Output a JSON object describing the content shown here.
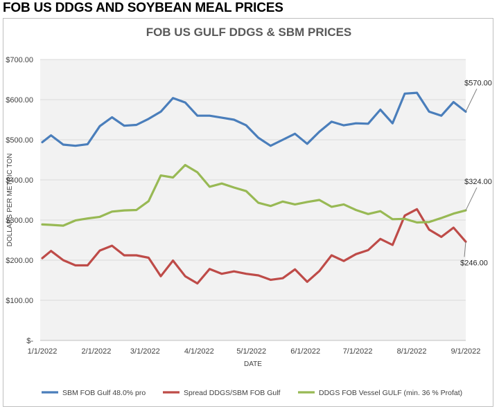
{
  "page": {
    "heading": "FOB US DDGS AND SOYBEAN MEAL PRICES"
  },
  "chart_data": {
    "type": "line",
    "title": "FOB US GULF DDGS & SBM PRICES",
    "xlabel": "DATE",
    "ylabel": "DOLLARS PER METRIC TON",
    "ylim": [
      0,
      700
    ],
    "yticks": [
      0,
      100,
      200,
      300,
      400,
      500,
      600,
      700
    ],
    "ytick_labels": [
      "$-",
      "$100.00",
      "$200.00",
      "$300.00",
      "$400.00",
      "$500.00",
      "$600.00",
      "$700.00"
    ],
    "xticks": [
      0,
      31,
      59,
      90,
      120,
      151,
      181,
      212,
      243
    ],
    "xtick_labels": [
      "1/1/2022",
      "2/1/2022",
      "3/1/2022",
      "4/1/2022",
      "5/1/2022",
      "6/1/2022",
      "7/1/2022",
      "8/1/2022",
      "9/1/2022"
    ],
    "x_unit": "days since 1/1/2022",
    "x": [
      0,
      5,
      12,
      19,
      26,
      33,
      40,
      47,
      54,
      61,
      68,
      75,
      82,
      89,
      96,
      103,
      110,
      117,
      124,
      131,
      138,
      145,
      152,
      159,
      166,
      173,
      180,
      187,
      194,
      201,
      208,
      215,
      222,
      229,
      236,
      243
    ],
    "series": [
      {
        "name": "SBM FOB Gulf 48.0% pro",
        "color": "#4a7ebb",
        "values": [
          494,
          511,
          488,
          485,
          489,
          534,
          556,
          535,
          537,
          552,
          570,
          604,
          593,
          560,
          560,
          555,
          550,
          536,
          505,
          485,
          500,
          515,
          490,
          520,
          545,
          536,
          541,
          540,
          575,
          541,
          615,
          617,
          570,
          560,
          594,
          570
        ]
      },
      {
        "name": "Spread DDGS/SBM FOB Gulf",
        "color": "#be4b48",
        "values": [
          205,
          223,
          200,
          187,
          187,
          224,
          236,
          212,
          212,
          206,
          160,
          199,
          160,
          142,
          178,
          166,
          172,
          166,
          162,
          151,
          155,
          177,
          146,
          173,
          212,
          198,
          215,
          225,
          253,
          238,
          311,
          327,
          276,
          258,
          281,
          246
        ]
      },
      {
        "name": "DDGS FOB Vessel GULF  (min. 36 % Profat)",
        "color": "#98b954",
        "values": [
          289,
          288,
          286,
          299,
          304,
          308,
          321,
          324,
          325,
          347,
          411,
          406,
          437,
          419,
          383,
          391,
          381,
          372,
          343,
          335,
          346,
          339,
          345,
          350,
          333,
          339,
          325,
          315,
          322,
          302,
          303,
          294,
          295,
          305,
          316,
          324
        ]
      }
    ],
    "annotations": [
      {
        "series": 0,
        "text": "$570.00"
      },
      {
        "series": 2,
        "text": "$324.00"
      },
      {
        "series": 1,
        "text": "$246.00"
      }
    ],
    "legend": "bottom"
  }
}
